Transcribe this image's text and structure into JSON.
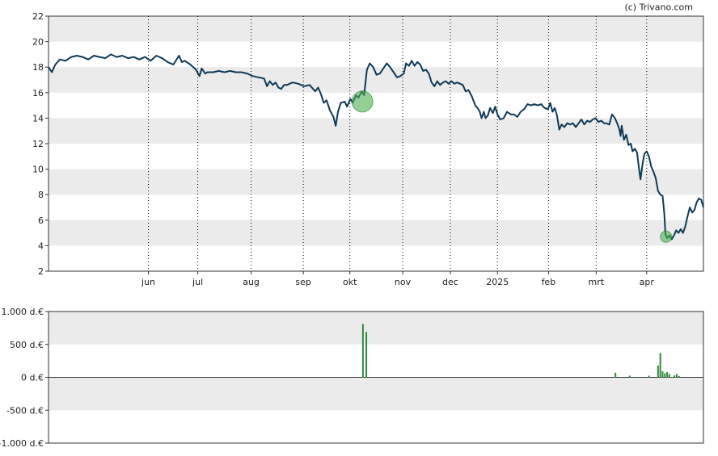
{
  "credit": "(c) Trivano.com",
  "colors": {
    "band": "#ebebeb",
    "line": "#0e3a57",
    "marker_fill": "#4caf50",
    "volume_bar": "#2e8b3a",
    "grid": "#000000"
  },
  "chart_data": [
    {
      "type": "line",
      "title": "",
      "xlabel": "",
      "ylabel": "",
      "ylim": [
        2,
        22
      ],
      "yticks": [
        "2",
        "4",
        "6",
        "8",
        "10",
        "12",
        "14",
        "16",
        "18",
        "20",
        "22"
      ],
      "grid": "vertical dotted month lines, alternating horizontal bands",
      "month_labels": [
        "jun",
        "jul",
        "aug",
        "sep",
        "okt",
        "nov",
        "dec",
        "2025",
        "feb",
        "mrt",
        "apr"
      ],
      "month_positions": [
        22.6,
        31.3,
        40.7,
        49.9,
        58.1,
        67.4,
        75.8,
        84.1,
        93.1,
        101.5,
        110.4
      ],
      "x_range": [
        5,
        115
      ],
      "series": [
        {
          "values": [
            [
              5.0,
              18.0
            ],
            [
              5.6,
              17.6
            ],
            [
              6.2,
              18.2
            ],
            [
              7.0,
              18.6
            ],
            [
              8.0,
              18.5
            ],
            [
              9.0,
              18.8
            ],
            [
              10.0,
              18.9
            ],
            [
              11.0,
              18.8
            ],
            [
              12.0,
              18.6
            ],
            [
              13.0,
              18.9
            ],
            [
              14.0,
              18.8
            ],
            [
              15.0,
              18.7
            ],
            [
              16.0,
              19.0
            ],
            [
              17.0,
              18.8
            ],
            [
              18.0,
              18.9
            ],
            [
              19.0,
              18.7
            ],
            [
              20.0,
              18.8
            ],
            [
              21.0,
              18.6
            ],
            [
              22.0,
              18.8
            ],
            [
              23.0,
              18.5
            ],
            [
              24.0,
              18.9
            ],
            [
              25.0,
              18.7
            ],
            [
              26.0,
              18.4
            ],
            [
              27.0,
              18.2
            ],
            [
              28.0,
              18.9
            ],
            [
              28.5,
              18.4
            ],
            [
              29.0,
              18.5
            ],
            [
              30.0,
              18.2
            ],
            [
              31.0,
              17.8
            ],
            [
              31.6,
              17.3
            ],
            [
              32.0,
              17.9
            ],
            [
              32.6,
              17.5
            ],
            [
              33.0,
              17.6
            ],
            [
              34.0,
              17.6
            ],
            [
              35.0,
              17.7
            ],
            [
              36.0,
              17.6
            ],
            [
              37.0,
              17.7
            ],
            [
              38.0,
              17.6
            ],
            [
              39.0,
              17.6
            ],
            [
              40.0,
              17.5
            ],
            [
              41.0,
              17.3
            ],
            [
              42.0,
              17.2
            ],
            [
              43.0,
              17.1
            ],
            [
              43.5,
              16.5
            ],
            [
              44.0,
              16.9
            ],
            [
              44.5,
              16.6
            ],
            [
              45.0,
              16.8
            ],
            [
              45.5,
              16.4
            ],
            [
              46.0,
              16.3
            ],
            [
              46.5,
              16.6
            ],
            [
              47.0,
              16.6
            ],
            [
              48.0,
              16.8
            ],
            [
              49.0,
              16.7
            ],
            [
              50.0,
              16.5
            ],
            [
              51.0,
              16.6
            ],
            [
              52.0,
              16.1
            ],
            [
              52.5,
              16.4
            ],
            [
              53.0,
              15.9
            ],
            [
              53.5,
              15.2
            ],
            [
              54.0,
              15.4
            ],
            [
              54.6,
              14.6
            ],
            [
              55.2,
              14.1
            ],
            [
              55.6,
              13.4
            ],
            [
              56.0,
              14.5
            ],
            [
              56.5,
              15.2
            ],
            [
              57.2,
              15.3
            ],
            [
              57.6,
              14.9
            ],
            [
              58.2,
              15.5
            ],
            [
              58.6,
              15.2
            ],
            [
              59.2,
              15.8
            ],
            [
              59.6,
              15.6
            ],
            [
              60.2,
              16.1
            ],
            [
              60.6,
              15.8
            ],
            [
              61.1,
              17.8
            ],
            [
              61.6,
              18.3
            ],
            [
              62.2,
              18.0
            ],
            [
              62.8,
              17.4
            ],
            [
              63.4,
              17.5
            ],
            [
              64.0,
              17.9
            ],
            [
              64.6,
              18.3
            ],
            [
              65.2,
              18.0
            ],
            [
              65.8,
              17.6
            ],
            [
              66.4,
              17.2
            ],
            [
              67.0,
              17.3
            ],
            [
              67.6,
              17.5
            ],
            [
              68.0,
              18.3
            ],
            [
              68.5,
              18.1
            ],
            [
              69.0,
              18.5
            ],
            [
              69.5,
              18.1
            ],
            [
              70.0,
              18.4
            ],
            [
              70.5,
              18.2
            ],
            [
              71.0,
              17.7
            ],
            [
              71.5,
              17.8
            ],
            [
              72.0,
              17.5
            ],
            [
              72.5,
              16.8
            ],
            [
              73.0,
              16.5
            ],
            [
              73.5,
              16.9
            ],
            [
              74.0,
              16.6
            ],
            [
              74.5,
              16.8
            ],
            [
              75.0,
              16.9
            ],
            [
              75.5,
              16.7
            ],
            [
              76.0,
              16.9
            ],
            [
              76.5,
              16.7
            ],
            [
              77.0,
              16.8
            ],
            [
              77.5,
              16.7
            ],
            [
              78.0,
              16.6
            ],
            [
              78.5,
              16.1
            ],
            [
              79.0,
              16.2
            ],
            [
              79.6,
              15.7
            ],
            [
              80.2,
              15.0
            ],
            [
              80.6,
              14.8
            ],
            [
              81.0,
              14.5
            ],
            [
              81.3,
              14.0
            ],
            [
              81.7,
              14.5
            ],
            [
              82.0,
              14.0
            ],
            [
              82.4,
              14.2
            ],
            [
              82.8,
              14.8
            ],
            [
              83.3,
              14.4
            ],
            [
              83.7,
              14.9
            ],
            [
              84.1,
              14.3
            ],
            [
              84.6,
              13.9
            ],
            [
              85.2,
              14.0
            ],
            [
              85.8,
              14.5
            ],
            [
              86.4,
              14.3
            ],
            [
              87.0,
              14.3
            ],
            [
              87.6,
              14.1
            ],
            [
              88.2,
              14.5
            ],
            [
              88.8,
              14.7
            ],
            [
              89.4,
              15.1
            ],
            [
              90.0,
              15.0
            ],
            [
              90.6,
              15.1
            ],
            [
              91.2,
              15.0
            ],
            [
              91.8,
              15.1
            ],
            [
              92.4,
              14.8
            ],
            [
              93.0,
              14.7
            ],
            [
              93.4,
              15.2
            ],
            [
              93.8,
              14.5
            ],
            [
              94.2,
              14.8
            ],
            [
              94.6,
              14.2
            ],
            [
              95.0,
              13.1
            ],
            [
              95.4,
              13.5
            ],
            [
              95.9,
              13.3
            ],
            [
              96.4,
              13.6
            ],
            [
              96.9,
              13.5
            ],
            [
              97.4,
              13.6
            ],
            [
              97.9,
              13.3
            ],
            [
              98.4,
              13.6
            ],
            [
              98.9,
              13.9
            ],
            [
              99.4,
              13.5
            ],
            [
              99.9,
              13.8
            ],
            [
              100.4,
              13.7
            ],
            [
              100.9,
              13.9
            ],
            [
              101.4,
              14.0
            ],
            [
              101.9,
              13.7
            ],
            [
              102.4,
              13.8
            ],
            [
              102.9,
              13.6
            ],
            [
              103.3,
              13.6
            ],
            [
              103.8,
              13.5
            ],
            [
              104.3,
              14.3
            ],
            [
              104.8,
              14.0
            ],
            [
              105.2,
              13.6
            ],
            [
              105.6,
              13.1
            ],
            [
              105.8,
              12.6
            ],
            [
              106.0,
              13.4
            ],
            [
              106.4,
              12.3
            ],
            [
              106.8,
              12.7
            ],
            [
              107.2,
              11.9
            ],
            [
              107.6,
              12.0
            ],
            [
              107.9,
              11.4
            ],
            [
              108.3,
              11.6
            ],
            [
              108.7,
              11.3
            ],
            [
              109.0,
              10.2
            ],
            [
              109.3,
              9.2
            ],
            [
              109.7,
              10.5
            ],
            [
              110.0,
              11.2
            ],
            [
              110.4,
              11.4
            ],
            [
              110.8,
              11.0
            ],
            [
              111.2,
              10.2
            ],
            [
              111.6,
              9.8
            ],
            [
              112.0,
              9.3
            ],
            [
              112.4,
              8.3
            ],
            [
              112.8,
              8.0
            ],
            [
              113.2,
              7.9
            ],
            [
              113.5,
              6.5
            ],
            [
              113.7,
              4.9
            ],
            [
              114.0,
              4.6
            ],
            [
              114.4,
              4.8
            ],
            [
              114.8,
              4.5
            ],
            [
              115.2,
              4.8
            ],
            [
              115.6,
              5.2
            ],
            [
              116.0,
              5.0
            ],
            [
              116.4,
              5.3
            ],
            [
              116.8,
              5.0
            ],
            [
              117.2,
              5.5
            ],
            [
              117.6,
              6.3
            ],
            [
              118.0,
              7.0
            ],
            [
              118.4,
              6.6
            ],
            [
              118.8,
              6.8
            ],
            [
              119.2,
              7.4
            ],
            [
              119.6,
              7.7
            ],
            [
              120.0,
              7.6
            ],
            [
              120.4,
              7.0
            ]
          ]
        }
      ],
      "markers": [
        {
          "x": 60.3,
          "y": 15.3,
          "size": "large"
        },
        {
          "x": 113.8,
          "y": 4.7,
          "size": "small"
        }
      ]
    },
    {
      "type": "bar",
      "title": "",
      "ylim": [
        -1000,
        1000
      ],
      "yticks": [
        "1.000 d.€",
        "500 d.€",
        "0 d.€",
        "-500 d.€",
        "-1.000 d.€"
      ],
      "bars": [
        {
          "x": 60.4,
          "value": 810
        },
        {
          "x": 61.0,
          "value": 690
        },
        {
          "x": 104.9,
          "value": 70
        },
        {
          "x": 107.4,
          "value": 25
        },
        {
          "x": 110.8,
          "value": 25
        },
        {
          "x": 112.4,
          "value": 180
        },
        {
          "x": 112.8,
          "value": 370
        },
        {
          "x": 113.2,
          "value": 90
        },
        {
          "x": 113.6,
          "value": 60
        },
        {
          "x": 114.0,
          "value": 80
        },
        {
          "x": 114.4,
          "value": 50
        },
        {
          "x": 115.3,
          "value": 30
        },
        {
          "x": 115.7,
          "value": 50
        },
        {
          "x": 116.1,
          "value": 20
        }
      ]
    }
  ]
}
